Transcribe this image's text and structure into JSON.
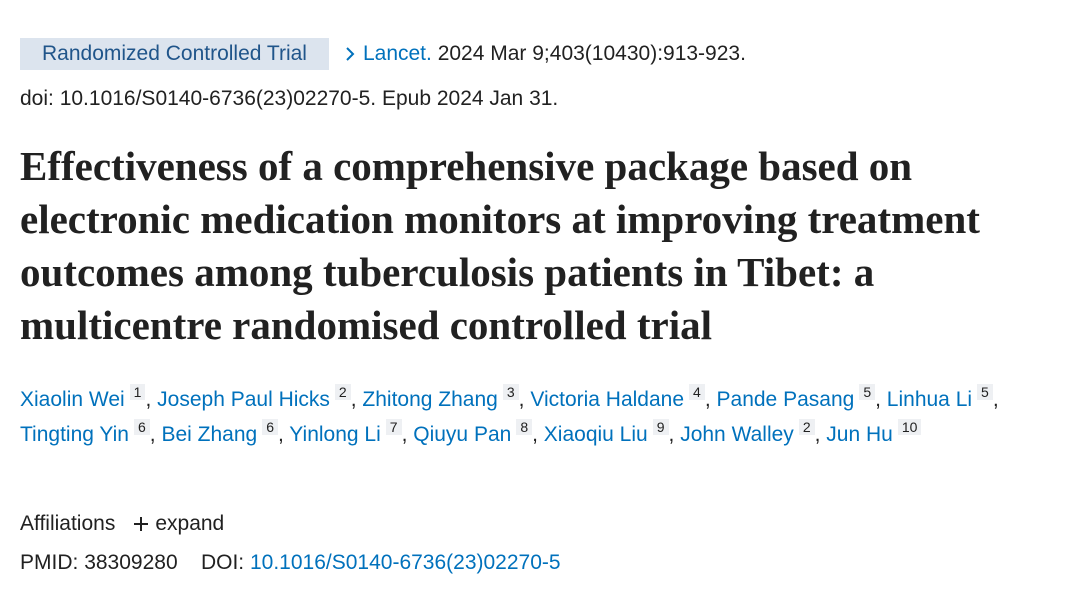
{
  "publication_type": "Randomized Controlled Trial",
  "journal": "Lancet.",
  "citation": "2024 Mar 9;403(10430):913-923.",
  "doi_line": "doi: 10.1016/S0140-6736(23)02270-5. Epub 2024 Jan 31.",
  "title": "Effectiveness of a comprehensive package based on electronic medication monitors at improving treatment outcomes among tuberculosis patients in Tibet: a multicentre randomised controlled trial",
  "author_separator": ",",
  "authors": [
    {
      "name": "Xiaolin Wei",
      "affiliation": "1"
    },
    {
      "name": "Joseph Paul Hicks",
      "affiliation": "2"
    },
    {
      "name": "Zhitong Zhang",
      "affiliation": "3"
    },
    {
      "name": "Victoria Haldane",
      "affiliation": "4"
    },
    {
      "name": "Pande Pasang",
      "affiliation": "5"
    },
    {
      "name": "Linhua Li",
      "affiliation": "5"
    },
    {
      "name": "Tingting Yin",
      "affiliation": "6"
    },
    {
      "name": "Bei Zhang",
      "affiliation": "6"
    },
    {
      "name": "Yinlong Li",
      "affiliation": "7"
    },
    {
      "name": "Qiuyu Pan",
      "affiliation": "8"
    },
    {
      "name": "Xiaoqiu Liu",
      "affiliation": "9"
    },
    {
      "name": "John Walley",
      "affiliation": "2"
    },
    {
      "name": "Jun Hu",
      "affiliation": "10"
    }
  ],
  "affiliations_label": "Affiliations",
  "expand_label": "expand",
  "pmid_label": "PMID:",
  "pmid": "38309280",
  "doi_label": "DOI:",
  "doi": "10.1016/S0140-6736(23)02270-5"
}
